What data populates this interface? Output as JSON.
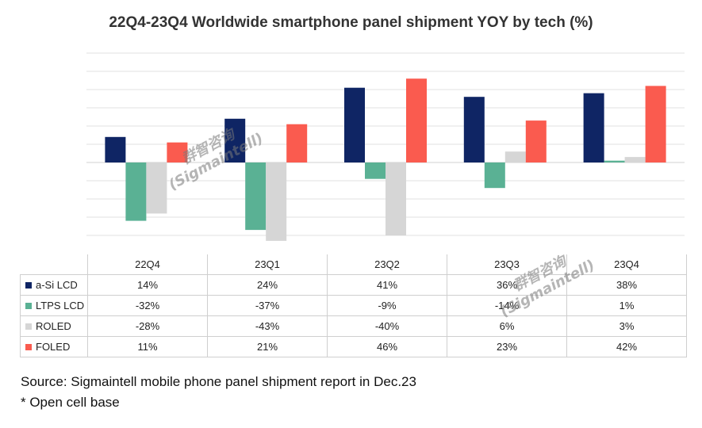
{
  "chart_data": {
    "type": "bar",
    "title": "22Q4-23Q4 Worldwide smartphone panel shipment YOY by tech (%)",
    "categories": [
      "22Q4",
      "23Q1",
      "23Q2",
      "23Q3",
      "23Q4"
    ],
    "series": [
      {
        "name": "a-Si LCD",
        "color": "#0f2564",
        "values": [
          14,
          24,
          41,
          36,
          38
        ],
        "labels": [
          "14%",
          "24%",
          "41%",
          "36%",
          "38%"
        ]
      },
      {
        "name": "LTPS LCD",
        "color": "#5ab194",
        "values": [
          -32,
          -37,
          -9,
          -14,
          1
        ],
        "labels": [
          "-32%",
          "-37%",
          "-9%",
          "-14%",
          "1%"
        ]
      },
      {
        "name": "ROLED",
        "color": "#d6d6d6",
        "values": [
          -28,
          -43,
          -40,
          6,
          3
        ],
        "labels": [
          "-28%",
          "-43%",
          "-40%",
          "6%",
          "3%"
        ]
      },
      {
        "name": "FOLED",
        "color": "#fa5b4f",
        "values": [
          11,
          21,
          46,
          23,
          42
        ],
        "labels": [
          "11%",
          "21%",
          "46%",
          "23%",
          "42%"
        ]
      }
    ],
    "ylim": [
      -40,
      60
    ],
    "grid": true,
    "legend": "data table below chart"
  },
  "watermark": {
    "cn": "群智咨询",
    "en": "(Sigmaintell)"
  },
  "notes": {
    "source": "Source: Sigmaintell mobile phone panel shipment report in Dec.23",
    "base": "* Open cell base"
  }
}
